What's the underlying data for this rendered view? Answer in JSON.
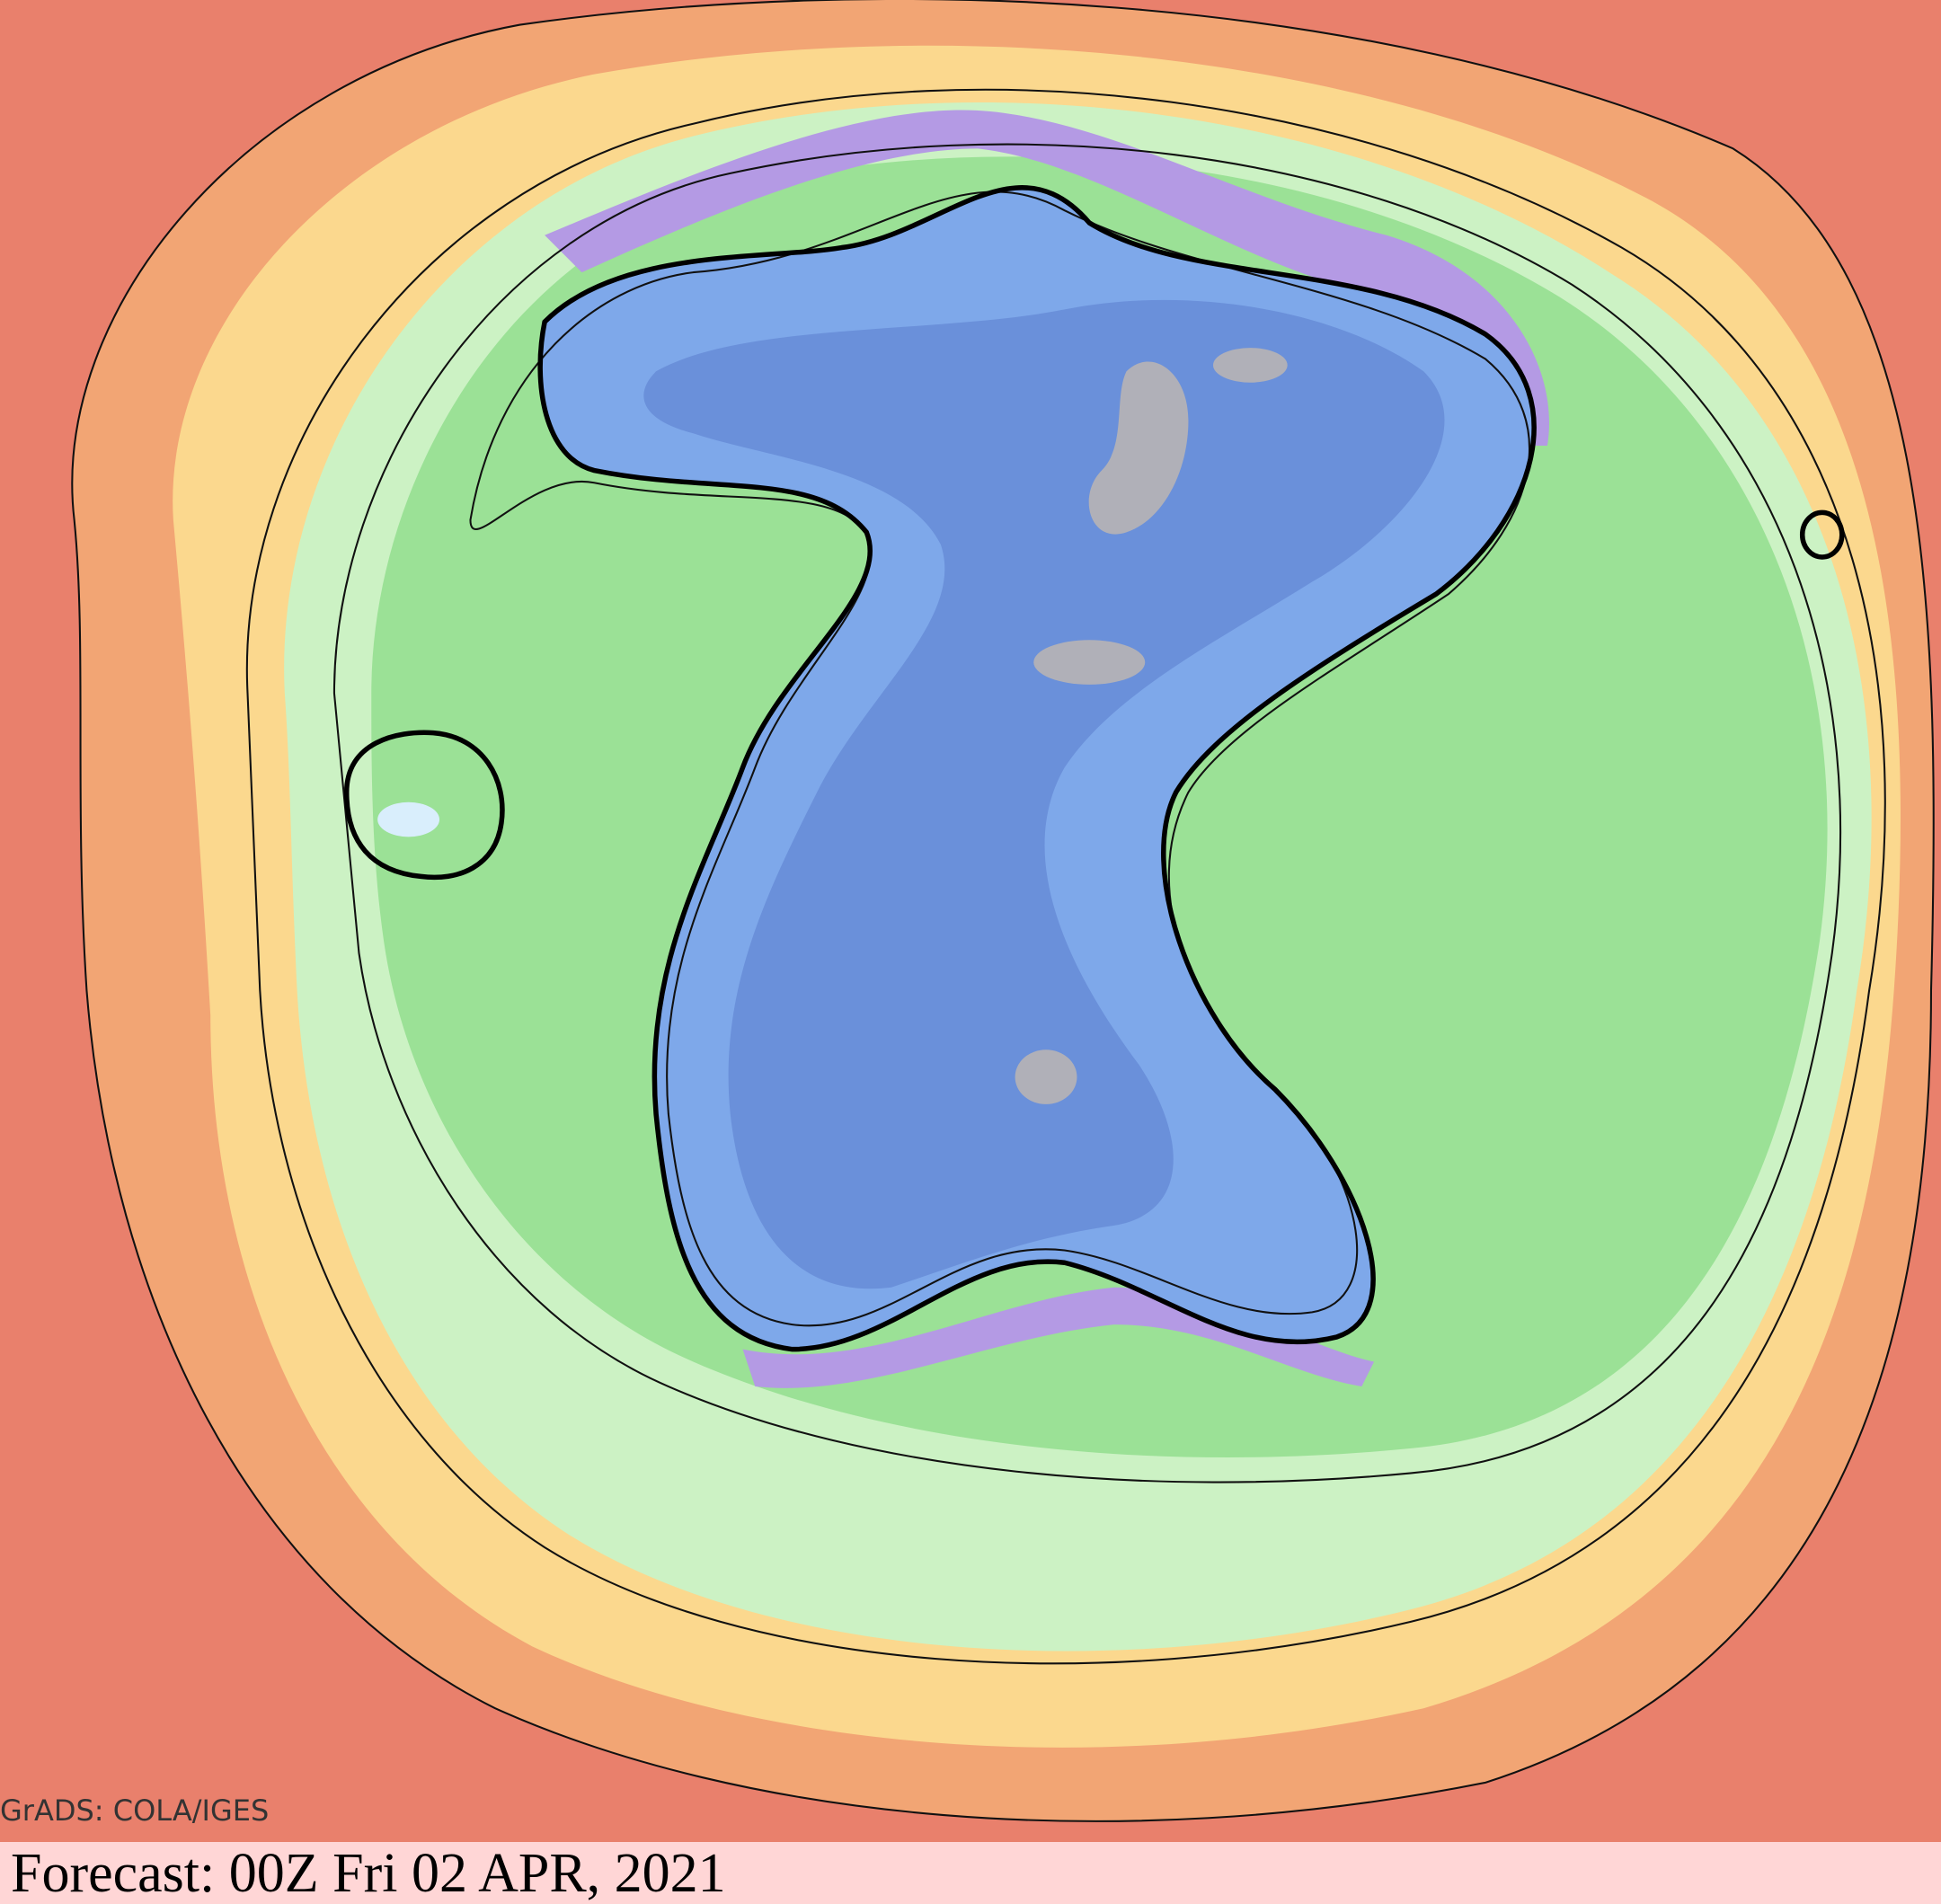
{
  "credit": "GrADS: COLA/IGES",
  "forecast": "Forecast: 00Z Fri 02 APR, 2021"
}
